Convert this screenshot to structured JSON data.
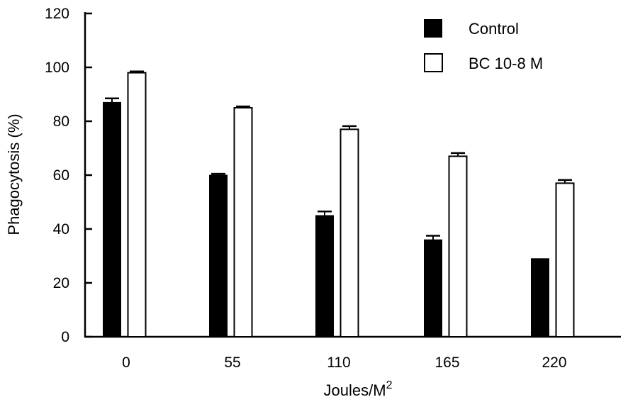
{
  "chart_data": {
    "type": "bar",
    "categories": [
      "0",
      "55",
      "110",
      "165",
      "220"
    ],
    "series": [
      {
        "name": "Control",
        "values": [
          87,
          60,
          45,
          36,
          29
        ],
        "errors": [
          1.5,
          0.5,
          1.5,
          1.5,
          0
        ],
        "color": "#000000",
        "fill": "solid"
      },
      {
        "name": "BC 10-8 M",
        "values": [
          98,
          85,
          77,
          67,
          57
        ],
        "errors": [
          0.5,
          0.5,
          1.2,
          1.2,
          1.2
        ],
        "color": "#000000",
        "fill": "white"
      }
    ],
    "xlabel": "Joules/M",
    "xlabel_sup": "2",
    "ylabel": "Phagocytosis (%)",
    "ylim": [
      0,
      120
    ],
    "yticks": [
      "0",
      "20",
      "40",
      "60",
      "80",
      "100",
      "120"
    ],
    "legend_position": "top-right",
    "grid": false
  }
}
